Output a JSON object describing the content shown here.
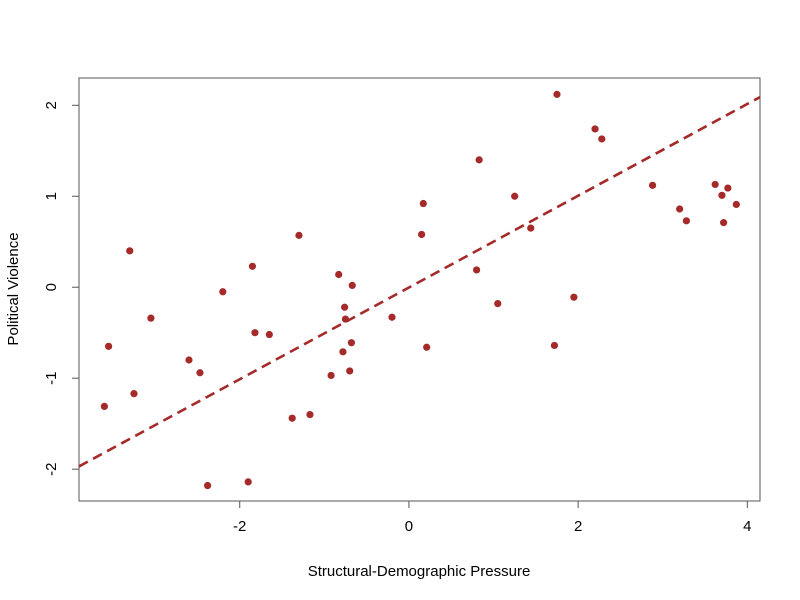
{
  "chart_data": {
    "type": "scatter",
    "title": "",
    "xlabel": "Structural-Demographic Pressure",
    "ylabel": "Political Violence",
    "xlim": [
      -3.9,
      4.15
    ],
    "ylim": [
      -2.35,
      2.3
    ],
    "xticks": [
      -2,
      0,
      2,
      4
    ],
    "xtick_labels": [
      "-2",
      "0",
      "2",
      "4"
    ],
    "yticks": [
      -2,
      -1,
      0,
      1,
      2
    ],
    "ytick_labels": [
      "-2",
      "-1",
      "0",
      "1",
      "2"
    ],
    "grid": false,
    "point_color": "#a52a2a",
    "line_color": "#a52a2a",
    "points": [
      {
        "x": -3.6,
        "y": -1.31
      },
      {
        "x": -3.55,
        "y": -0.65
      },
      {
        "x": -3.3,
        "y": 0.4
      },
      {
        "x": -3.25,
        "y": -1.17
      },
      {
        "x": -3.05,
        "y": -0.34
      },
      {
        "x": -2.6,
        "y": -0.8
      },
      {
        "x": -2.47,
        "y": -0.94
      },
      {
        "x": -2.38,
        "y": -2.18
      },
      {
        "x": -2.2,
        "y": -0.05
      },
      {
        "x": -1.9,
        "y": -2.14
      },
      {
        "x": -1.85,
        "y": 0.23
      },
      {
        "x": -1.82,
        "y": -0.5
      },
      {
        "x": -1.65,
        "y": -0.52
      },
      {
        "x": -1.38,
        "y": -1.44
      },
      {
        "x": -1.3,
        "y": 0.57
      },
      {
        "x": -1.17,
        "y": -1.4
      },
      {
        "x": -0.92,
        "y": -0.97
      },
      {
        "x": -0.83,
        "y": 0.14
      },
      {
        "x": -0.78,
        "y": -0.71
      },
      {
        "x": -0.76,
        "y": -0.22
      },
      {
        "x": -0.75,
        "y": -0.35
      },
      {
        "x": -0.7,
        "y": -0.92
      },
      {
        "x": -0.68,
        "y": -0.61
      },
      {
        "x": -0.67,
        "y": 0.02
      },
      {
        "x": -0.2,
        "y": -0.33
      },
      {
        "x": 0.15,
        "y": 0.58
      },
      {
        "x": 0.17,
        "y": 0.92
      },
      {
        "x": 0.21,
        "y": -0.66
      },
      {
        "x": 0.8,
        "y": 0.19
      },
      {
        "x": 0.83,
        "y": 1.4
      },
      {
        "x": 1.05,
        "y": -0.18
      },
      {
        "x": 1.25,
        "y": 1.0
      },
      {
        "x": 1.44,
        "y": 0.65
      },
      {
        "x": 1.72,
        "y": -0.64
      },
      {
        "x": 1.75,
        "y": 2.12
      },
      {
        "x": 1.95,
        "y": -0.11
      },
      {
        "x": 2.2,
        "y": 1.74
      },
      {
        "x": 2.28,
        "y": 1.63
      },
      {
        "x": 2.88,
        "y": 1.12
      },
      {
        "x": 3.2,
        "y": 0.86
      },
      {
        "x": 3.28,
        "y": 0.73
      },
      {
        "x": 3.62,
        "y": 1.13
      },
      {
        "x": 3.7,
        "y": 1.01
      },
      {
        "x": 3.72,
        "y": 0.71
      },
      {
        "x": 3.77,
        "y": 1.09
      },
      {
        "x": 3.87,
        "y": 0.91
      }
    ],
    "regression_line": {
      "style": "dashed",
      "x": [
        -3.9,
        4.15
      ],
      "y": [
        -1.97,
        2.09
      ]
    }
  }
}
